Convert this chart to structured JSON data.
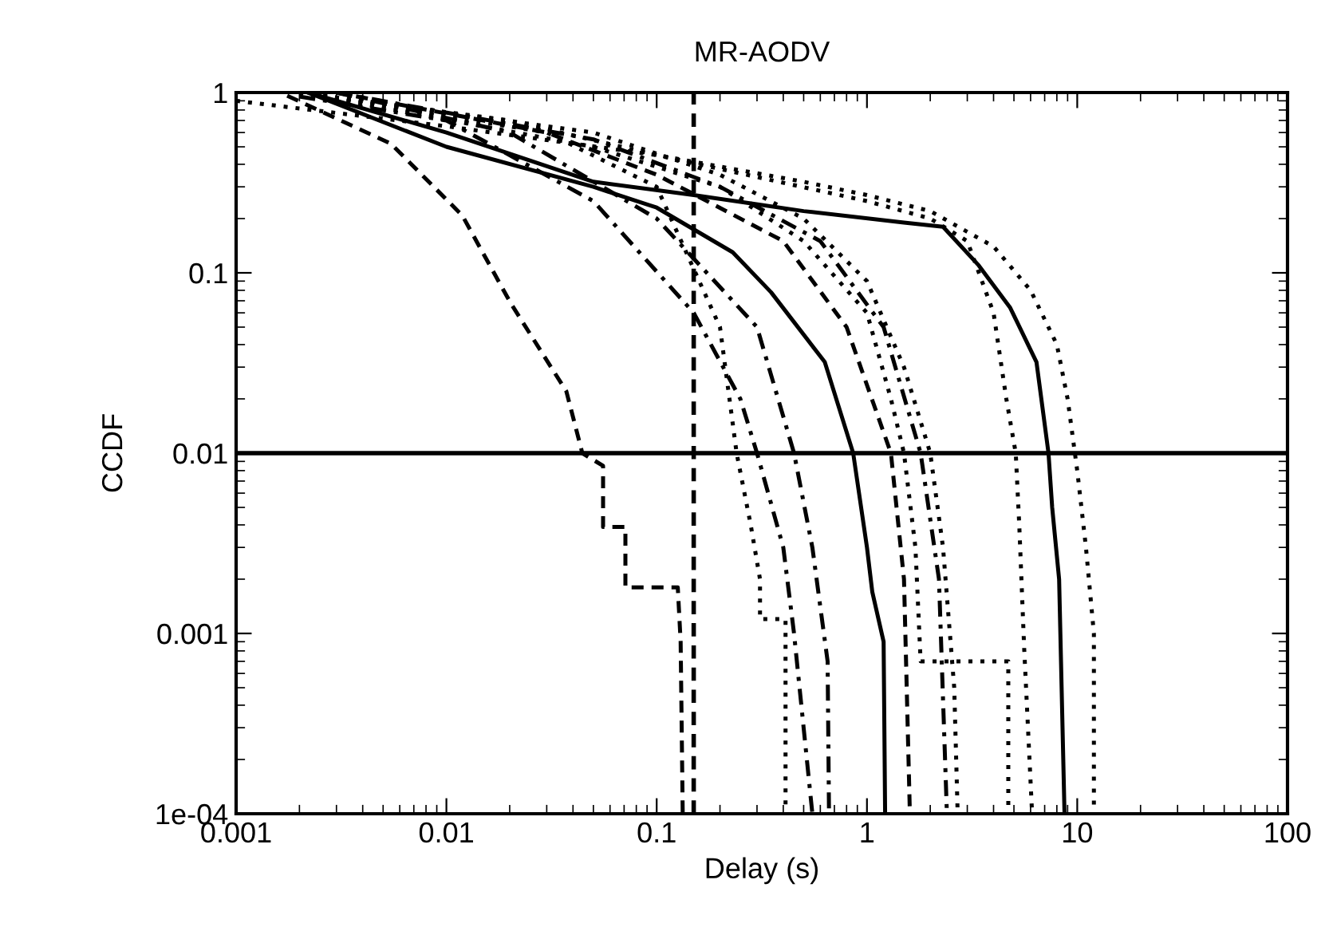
{
  "chart_data": {
    "type": "line",
    "title": "MR-AODV",
    "xlabel": "Delay (s)",
    "ylabel": "CCDF",
    "log": "xy",
    "grid": false,
    "legend": false,
    "marker": "none",
    "xlim": [
      0.001,
      100
    ],
    "xticks": [
      0.001,
      0.01,
      0.1,
      1,
      10,
      100
    ],
    "ylim": [
      0.0001,
      1
    ],
    "yticks": [
      {
        "value": 0.0001,
        "label": "1e-04"
      },
      0.001,
      0.01,
      0.1,
      1
    ],
    "ref_lines": [
      {
        "axis": "y",
        "value": 0.01,
        "color": "#000000",
        "line_style": "solid"
      },
      {
        "axis": "x",
        "value": 0.15,
        "color": "#000000",
        "line_style": "dashed"
      }
    ],
    "series": [
      {
        "color": "#000000",
        "line_style": "dashed",
        "x": [
          0.00175,
          0.00545,
          0.0119,
          0.0202,
          0.0372,
          0.0443,
          0.0556,
          0.0556,
          0.071,
          0.071,
          0.126,
          0.13,
          0.133
        ],
        "values": [
          0.96,
          0.52,
          0.208,
          0.068,
          0.022,
          0.01,
          0.0085,
          0.0039,
          0.0039,
          0.0018,
          0.0018,
          0.0009,
          0.0001
        ]
      },
      {
        "color": "#000000",
        "line_style": "solid",
        "x": [
          0.0022,
          0.01,
          0.05,
          0.15,
          0.5,
          1.5,
          2.3,
          3.4,
          4.8,
          6.4,
          7.3,
          7.6,
          8.2,
          8.7
        ],
        "values": [
          1,
          0.6,
          0.32,
          0.27,
          0.22,
          0.19,
          0.18,
          0.11,
          0.064,
          0.032,
          0.01,
          0.005,
          0.002,
          0.0001
        ]
      },
      {
        "color": "#000000",
        "line_style": "solid",
        "x": [
          0.0022,
          0.01,
          0.05,
          0.1,
          0.23,
          0.35,
          0.63,
          0.86,
          1.0,
          1.06,
          1.2,
          1.22
        ],
        "values": [
          1,
          0.5,
          0.3,
          0.23,
          0.13,
          0.078,
          0.032,
          0.01,
          0.003,
          0.0017,
          0.0009,
          0.0001
        ]
      },
      {
        "color": "#000000",
        "line_style": "dotted",
        "x": [
          0.001,
          0.01,
          0.1,
          0.5,
          1,
          2,
          4,
          6,
          8,
          9,
          10,
          11,
          12,
          12
        ],
        "values": [
          0.9,
          0.65,
          0.45,
          0.32,
          0.27,
          0.22,
          0.14,
          0.08,
          0.04,
          0.02,
          0.008,
          0.003,
          0.001,
          0.0001
        ]
      },
      {
        "color": "#000000",
        "line_style": "dotted",
        "x": [
          0.002,
          0.02,
          0.1,
          1,
          2,
          3,
          4,
          4.6,
          5.1,
          5.3,
          5.6,
          6.1
        ],
        "values": [
          1,
          0.7,
          0.45,
          0.25,
          0.2,
          0.15,
          0.06,
          0.02,
          0.01,
          0.004,
          0.0008,
          0.0001
        ]
      },
      {
        "color": "#000000",
        "line_style": "dotted",
        "x": [
          0.002,
          0.05,
          0.2,
          0.5,
          1,
          1.3,
          1.5,
          1.7,
          1.8,
          4.7,
          4.7
        ],
        "values": [
          1,
          0.5,
          0.3,
          0.15,
          0.06,
          0.02,
          0.01,
          0.003,
          0.0007,
          0.0007,
          0.0001
        ]
      },
      {
        "color": "#000000",
        "line_style": "dotted",
        "x": [
          0.002,
          0.05,
          0.2,
          0.5,
          1,
          1.5,
          2,
          2.3,
          2.6,
          2.7
        ],
        "values": [
          1,
          0.6,
          0.35,
          0.2,
          0.09,
          0.03,
          0.01,
          0.003,
          0.0005,
          0.0001
        ]
      },
      {
        "color": "#000000",
        "line_style": "dashdot",
        "x": [
          0.003,
          0.05,
          0.2,
          0.6,
          1.2,
          1.8,
          2.2,
          2.4
        ],
        "values": [
          1,
          0.55,
          0.3,
          0.15,
          0.05,
          0.01,
          0.002,
          0.0001
        ]
      },
      {
        "color": "#000000",
        "line_style": "dashdot",
        "x": [
          0.002,
          0.01,
          0.05,
          0.15,
          0.25,
          0.3,
          0.4,
          0.45,
          0.55
        ],
        "values": [
          0.95,
          0.7,
          0.25,
          0.06,
          0.02,
          0.01,
          0.003,
          0.001,
          0.0001
        ]
      },
      {
        "color": "#000000",
        "line_style": "dashdot",
        "x": [
          0.003,
          0.02,
          0.1,
          0.3,
          0.45,
          0.55,
          0.65,
          0.66
        ],
        "values": [
          1,
          0.6,
          0.2,
          0.05,
          0.01,
          0.003,
          0.0007,
          0.0001
        ]
      },
      {
        "color": "#000000",
        "line_style": "dotted",
        "x": [
          0.002,
          0.03,
          0.1,
          0.2,
          0.24,
          0.28,
          0.31,
          0.31,
          0.41,
          0.41
        ],
        "values": [
          1,
          0.6,
          0.3,
          0.05,
          0.01,
          0.004,
          0.002,
          0.0012,
          0.0012,
          0.0001
        ]
      },
      {
        "color": "#000000",
        "line_style": "dashed",
        "x": [
          0.003,
          0.03,
          0.1,
          0.4,
          0.8,
          1.3,
          1.5,
          1.6
        ],
        "values": [
          1,
          0.6,
          0.35,
          0.15,
          0.05,
          0.01,
          0.002,
          0.0001
        ]
      }
    ]
  }
}
